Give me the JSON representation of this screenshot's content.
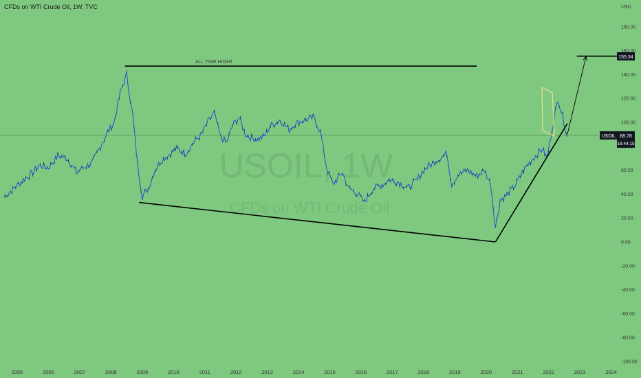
{
  "header": {
    "title": "CFDs on WTI Crude Oil, 1W, TVC"
  },
  "watermark": {
    "symbol": "USOIL, 1W",
    "name": "CFDs on WTI Crude Oil"
  },
  "annotation": {
    "ath_label": "ALL TIME HIGHT"
  },
  "price_tags": {
    "target": "155.34",
    "symbol": "USOIL",
    "last_price": "88.78",
    "countdown": "18:44:15"
  },
  "colors": {
    "background": "#7ec87f",
    "price_line": "#1e4fd6",
    "trendline": "#000000",
    "flag": "#f2e08a",
    "tag_dark": "#131722"
  },
  "chart_data": {
    "type": "line",
    "title": "CFDs on WTI Crude Oil, 1W, TVC",
    "currency": "USD",
    "ylim": [
      -100,
      190
    ],
    "yticks": [
      180,
      160,
      140,
      120,
      100,
      80,
      60,
      40,
      20,
      0,
      -20,
      -40,
      -60,
      -80,
      -100
    ],
    "ytick_labels": [
      "180.00",
      "160.00",
      "140.00",
      "120.00",
      "100.00",
      "80.00",
      "60.00",
      "40.00",
      "20.00",
      "0.00",
      "-20.00",
      "-40.00",
      "-60.00",
      "-80.00",
      "-100.00"
    ],
    "x_ticks": [
      "2005",
      "2006",
      "2007",
      "2008",
      "2009",
      "2010",
      "2011",
      "2012",
      "2013",
      "2014",
      "2015",
      "2016",
      "2017",
      "2018",
      "2019",
      "2020",
      "2021",
      "2022",
      "2023",
      "2024"
    ],
    "series": [
      {
        "x": [
          2004.6,
          2004.9,
          2005.2,
          2005.5,
          2005.7,
          2006.0,
          2006.3,
          2006.6,
          2006.9,
          2007.1,
          2007.4,
          2007.7,
          2007.9,
          2008.1,
          2008.3,
          2008.5,
          2008.7,
          2008.85,
          2009.0,
          2009.2,
          2009.4,
          2009.6,
          2009.8,
          2010.1,
          2010.4,
          2010.6,
          2010.9,
          2011.1,
          2011.3,
          2011.5,
          2011.7,
          2011.9,
          2012.1,
          2012.3,
          2012.5,
          2012.7,
          2012.9,
          2013.1,
          2013.4,
          2013.7,
          2013.9,
          2014.2,
          2014.5,
          2014.7,
          2014.9,
          2015.1,
          2015.4,
          2015.6,
          2015.9,
          2016.1,
          2016.4,
          2016.7,
          2016.9,
          2017.2,
          2017.5,
          2017.8,
          2018.0,
          2018.4,
          2018.75,
          2018.9,
          2019.1,
          2019.4,
          2019.7,
          2019.95,
          2020.15,
          2020.3,
          2020.45,
          2020.7,
          2020.95,
          2021.2,
          2021.5,
          2021.8,
          2021.95,
          2022.15,
          2022.3,
          2022.45,
          2022.6
        ],
        "values": [
          38,
          45,
          52,
          58,
          64,
          62,
          72,
          70,
          58,
          62,
          66,
          82,
          92,
          100,
          125,
          140,
          105,
          65,
          38,
          45,
          60,
          68,
          72,
          78,
          74,
          82,
          90,
          100,
          108,
          88,
          83,
          98,
          104,
          90,
          87,
          86,
          88,
          97,
          102,
          94,
          99,
          102,
          104,
          92,
          62,
          48,
          58,
          45,
          40,
          33,
          45,
          48,
          52,
          50,
          45,
          52,
          60,
          68,
          74,
          48,
          56,
          60,
          55,
          60,
          48,
          12,
          35,
          40,
          48,
          60,
          70,
          78,
          70,
          100,
          120,
          105,
          88
        ]
      }
    ],
    "drawings": [
      {
        "type": "horizontal",
        "label": "ALL TIME HIGHT",
        "from": 2008.45,
        "to": 2019.7,
        "y": 147
      },
      {
        "type": "trendline",
        "from": [
          2008.9,
          33
        ],
        "to": [
          2020.3,
          0
        ]
      },
      {
        "type": "trendline",
        "from": [
          2020.3,
          0
        ],
        "to": [
          2022.6,
          99
        ]
      },
      {
        "type": "arrow",
        "from": [
          2022.6,
          90
        ],
        "to": [
          2023.2,
          155.34
        ]
      },
      {
        "type": "horizontal",
        "from": 2022.9,
        "to": 2024.5,
        "y": 155.34
      }
    ]
  }
}
